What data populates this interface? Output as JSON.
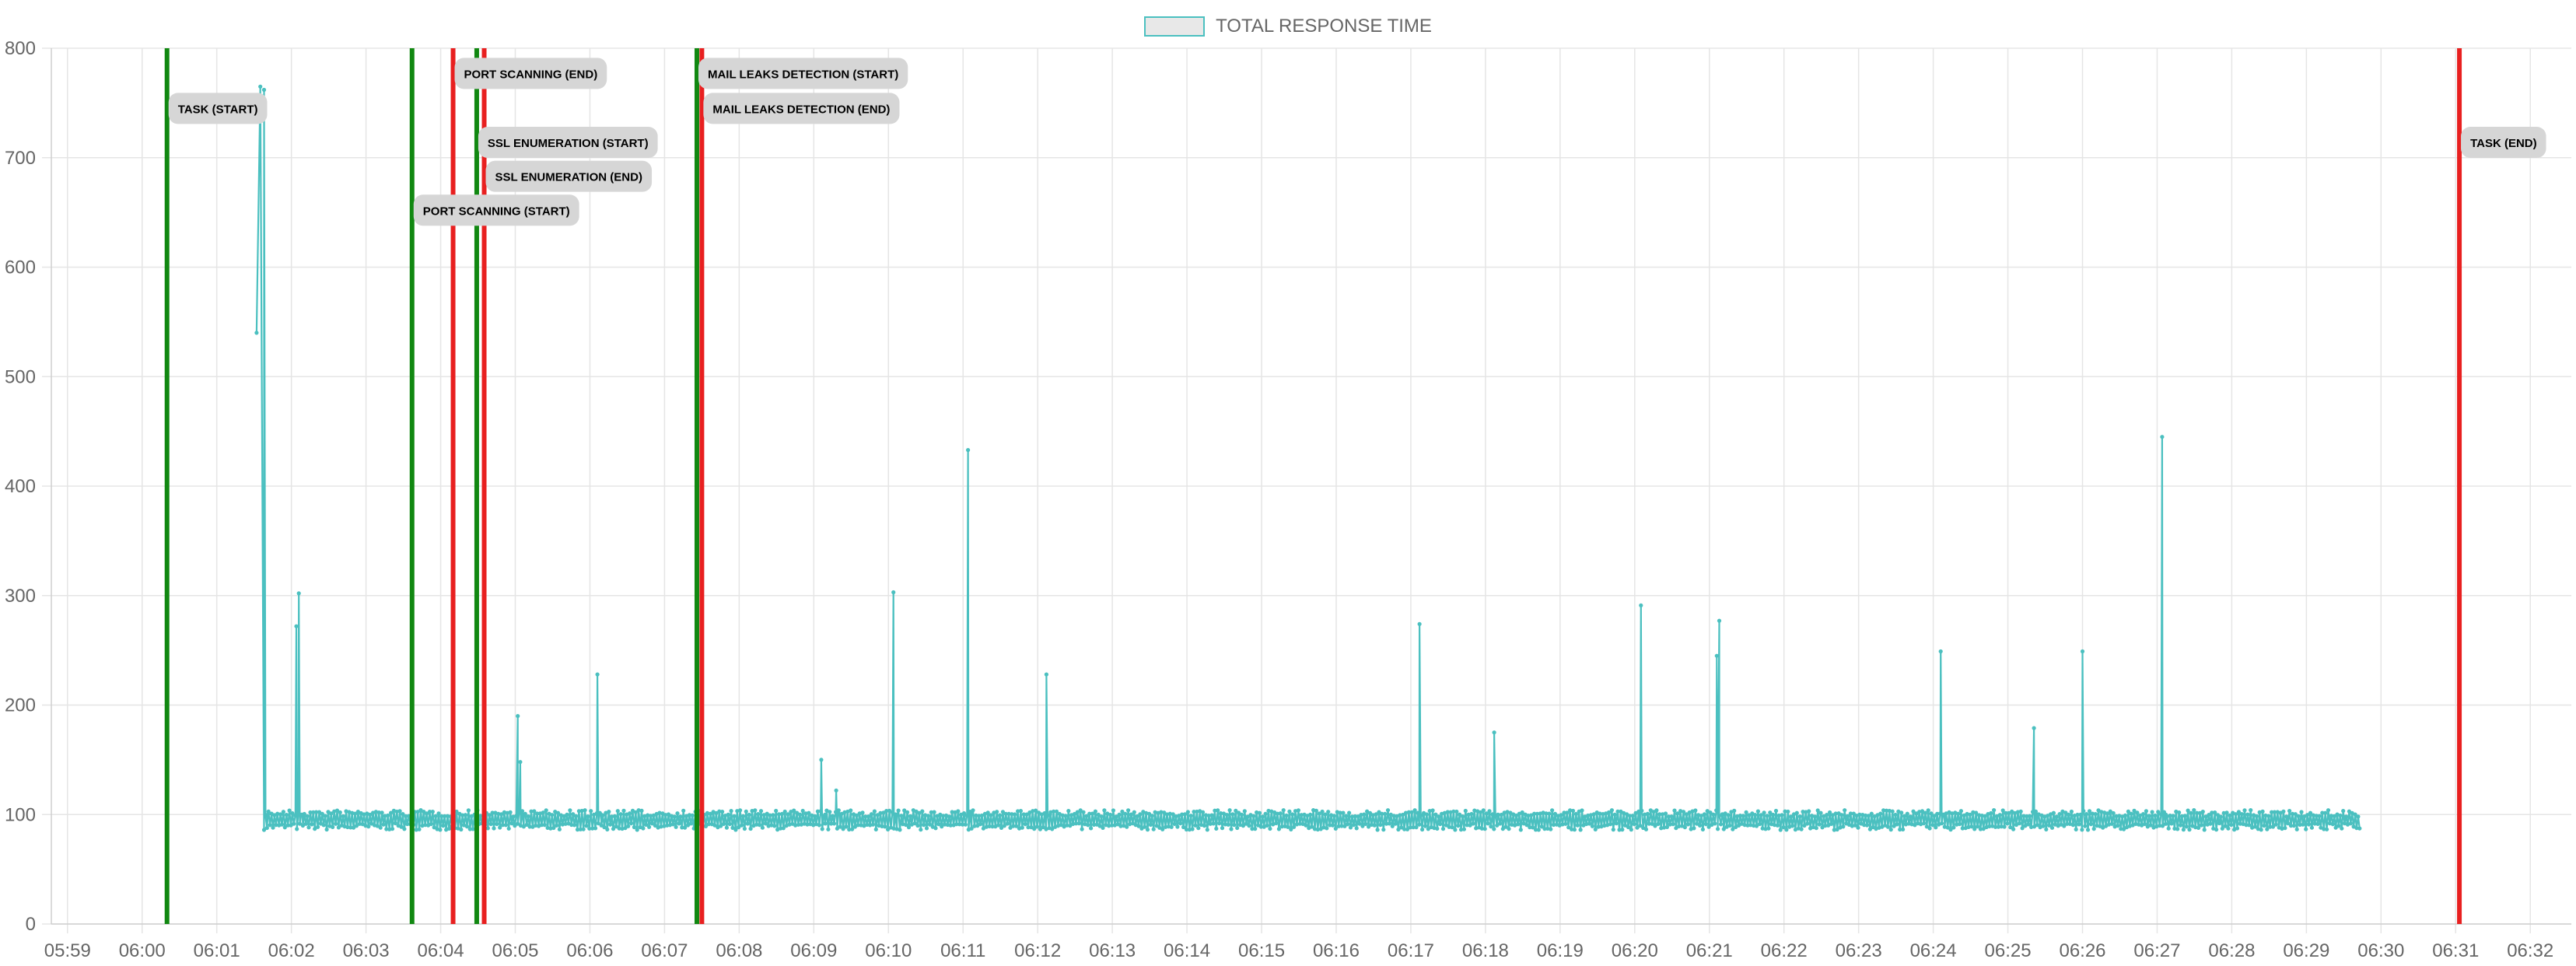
{
  "chart_data": {
    "type": "line",
    "legend": {
      "label": "TOTAL RESPONSE TIME",
      "position": "top-center"
    },
    "colors": {
      "series": "#4bc0c0",
      "start_marker": "#118811",
      "end_marker": "#e82020",
      "grid": "#e5e5e5",
      "label_bg": "#d6d6d6",
      "legend_fill": "#e8e8e8"
    },
    "grid": true,
    "ylim": [
      0,
      800
    ],
    "y_ticks": [
      "0",
      "100",
      "200",
      "300",
      "400",
      "500",
      "600",
      "700",
      "800"
    ],
    "x_ticks": [
      "05:59",
      "06:00",
      "06:01",
      "06:02",
      "06:03",
      "06:04",
      "06:05",
      "06:06",
      "06:07",
      "06:08",
      "06:09",
      "06:10",
      "06:11",
      "06:12",
      "06:13",
      "06:14",
      "06:15",
      "06:16",
      "06:17",
      "06:18",
      "06:19",
      "06:20",
      "06:21",
      "06:22",
      "06:23",
      "06:24",
      "06:25",
      "06:26",
      "06:27",
      "06:28",
      "06:29",
      "06:30",
      "06:31",
      "06:32"
    ],
    "xlim": [
      "05:58:47",
      "06:32:33"
    ],
    "series": [
      {
        "name": "TOTAL RESPONSE TIME",
        "baseline_range": [
          86,
          104
        ],
        "start_time": "06:01:38",
        "end_time": "06:29:44",
        "points": [
          [
            "06:01:32",
            540
          ],
          [
            "06:01:35",
            765
          ],
          [
            "06:01:38",
            762
          ],
          [
            "06:01:41",
            100
          ],
          [
            "06:02:04",
            272
          ],
          [
            "06:02:06",
            302
          ],
          [
            "06:02:09",
            100
          ],
          [
            "06:05:02",
            190
          ],
          [
            "06:05:04",
            148
          ],
          [
            "06:05:07",
            100
          ],
          [
            "06:06:06",
            228
          ],
          [
            "06:06:09",
            100
          ],
          [
            "06:09:06",
            150
          ],
          [
            "06:09:09",
            100
          ],
          [
            "06:09:18",
            122
          ],
          [
            "06:09:21",
            100
          ],
          [
            "06:10:04",
            303
          ],
          [
            "06:10:07",
            100
          ],
          [
            "06:11:04",
            433
          ],
          [
            "06:11:07",
            100
          ],
          [
            "06:12:07",
            228
          ],
          [
            "06:12:10",
            100
          ],
          [
            "06:17:07",
            274
          ],
          [
            "06:17:10",
            100
          ],
          [
            "06:18:07",
            175
          ],
          [
            "06:18:10",
            100
          ],
          [
            "06:20:05",
            291
          ],
          [
            "06:20:08",
            100
          ],
          [
            "06:21:06",
            245
          ],
          [
            "06:21:08",
            277
          ],
          [
            "06:21:11",
            100
          ],
          [
            "06:24:06",
            249
          ],
          [
            "06:24:09",
            100
          ],
          [
            "06:25:21",
            179
          ],
          [
            "06:25:24",
            100
          ],
          [
            "06:26:00",
            249
          ],
          [
            "06:26:03",
            100
          ],
          [
            "06:27:04",
            445
          ],
          [
            "06:27:07",
            100
          ]
        ]
      }
    ],
    "annotations": [
      {
        "label": "TASK (START)",
        "time": "06:00:20",
        "kind": "start",
        "label_value": 745,
        "label_align": "right"
      },
      {
        "label": "PORT SCANNING (START)",
        "time": "06:03:37",
        "kind": "start",
        "label_value": 652,
        "label_align": "right"
      },
      {
        "label": "PORT SCANNING (END)",
        "time": "06:04:10",
        "kind": "end",
        "label_value": 777,
        "label_align": "right"
      },
      {
        "label": "SSL ENUMERATION (START)",
        "time": "06:04:29",
        "kind": "start",
        "label_value": 714,
        "label_align": "right"
      },
      {
        "label": "SSL ENUMERATION (END)",
        "time": "06:04:35",
        "kind": "end",
        "label_value": 683,
        "label_align": "right"
      },
      {
        "label": "MAIL LEAKS DETECTION (START)",
        "time": "06:07:26",
        "kind": "start",
        "label_value": 777,
        "label_align": "right"
      },
      {
        "label": "MAIL LEAKS DETECTION (END)",
        "time": "06:07:30",
        "kind": "end",
        "label_value": 745,
        "label_align": "right"
      },
      {
        "label": "TASK (END)",
        "time": "06:31:03",
        "kind": "end",
        "label_value": 714,
        "label_align": "right"
      }
    ]
  }
}
